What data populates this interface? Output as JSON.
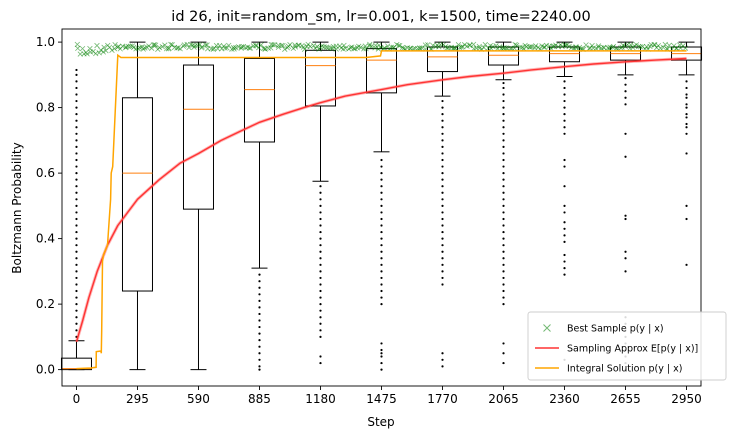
{
  "chart_data": {
    "type": "box",
    "title": "id 26, init=random_sm, lr=0.001, k=1500, time=2240.00",
    "xlabel": "Step",
    "ylabel": "Boltzmann Probability",
    "xlim": [
      -70,
      3020
    ],
    "ylim": [
      -0.05,
      1.04
    ],
    "x_ticks": [
      0,
      295,
      590,
      885,
      1180,
      1475,
      1770,
      2065,
      2360,
      2655,
      2950
    ],
    "y_ticks": [
      0.0,
      0.2,
      0.4,
      0.6,
      0.8,
      1.0
    ],
    "grid": false,
    "legend_position": "lower-right",
    "boxes": [
      {
        "step": 0,
        "q1": 0.0,
        "median": 0.003,
        "q3": 0.035,
        "whisker_low": 0.0,
        "whisker_high": 0.088,
        "outliers": [
          0.1,
          0.12,
          0.14,
          0.16,
          0.18,
          0.2,
          0.22,
          0.24,
          0.26,
          0.28,
          0.3,
          0.32,
          0.34,
          0.36,
          0.38,
          0.4,
          0.42,
          0.44,
          0.46,
          0.48,
          0.5,
          0.52,
          0.54,
          0.56,
          0.58,
          0.6,
          0.62,
          0.64,
          0.66,
          0.68,
          0.7,
          0.72,
          0.74,
          0.76,
          0.78,
          0.8,
          0.82,
          0.84,
          0.86,
          0.88,
          0.9,
          0.915
        ]
      },
      {
        "step": 295,
        "q1": 0.24,
        "median": 0.6,
        "q3": 0.83,
        "whisker_low": 0.0,
        "whisker_high": 1.0,
        "outliers": []
      },
      {
        "step": 590,
        "q1": 0.49,
        "median": 0.795,
        "q3": 0.93,
        "whisker_low": 0.0,
        "whisker_high": 1.0,
        "outliers": []
      },
      {
        "step": 885,
        "q1": 0.695,
        "median": 0.855,
        "q3": 0.95,
        "whisker_low": 0.31,
        "whisker_high": 1.0,
        "outliers": [
          0.0,
          0.01,
          0.03,
          0.05,
          0.07,
          0.09,
          0.11,
          0.13,
          0.15,
          0.17,
          0.19,
          0.21,
          0.23,
          0.25,
          0.27,
          0.29
        ]
      },
      {
        "step": 1180,
        "q1": 0.805,
        "median": 0.928,
        "q3": 0.975,
        "whisker_low": 0.575,
        "whisker_high": 1.0,
        "outliers": [
          0.02,
          0.04,
          0.1,
          0.12,
          0.14,
          0.16,
          0.18,
          0.2,
          0.22,
          0.24,
          0.26,
          0.28,
          0.3,
          0.32,
          0.34,
          0.36,
          0.38,
          0.4,
          0.42,
          0.44,
          0.46,
          0.48,
          0.5,
          0.52,
          0.54,
          0.56
        ]
      },
      {
        "step": 1475,
        "q1": 0.845,
        "median": 0.945,
        "q3": 0.98,
        "whisker_low": 0.665,
        "whisker_high": 1.0,
        "outliers": [
          0.0,
          0.02,
          0.04,
          0.05,
          0.06,
          0.08,
          0.2,
          0.22,
          0.24,
          0.26,
          0.28,
          0.3,
          0.32,
          0.34,
          0.36,
          0.38,
          0.4,
          0.42,
          0.44,
          0.46,
          0.48,
          0.5,
          0.52,
          0.54,
          0.56,
          0.58,
          0.6,
          0.62,
          0.64
        ]
      },
      {
        "step": 1770,
        "q1": 0.91,
        "median": 0.955,
        "q3": 0.985,
        "whisker_low": 0.835,
        "whisker_high": 1.0,
        "outliers": [
          0.01,
          0.03,
          0.05,
          0.26,
          0.28,
          0.3,
          0.32,
          0.34,
          0.36,
          0.38,
          0.4,
          0.42,
          0.44,
          0.46,
          0.48,
          0.5,
          0.52,
          0.54,
          0.56,
          0.58,
          0.6,
          0.62,
          0.64,
          0.66,
          0.68,
          0.7,
          0.72,
          0.74,
          0.76,
          0.78,
          0.8,
          0.82
        ]
      },
      {
        "step": 2065,
        "q1": 0.93,
        "median": 0.96,
        "q3": 0.985,
        "whisker_low": 0.885,
        "whisker_high": 1.0,
        "outliers": [
          0.02,
          0.05,
          0.08,
          0.2,
          0.22,
          0.24,
          0.26,
          0.28,
          0.3,
          0.32,
          0.34,
          0.36,
          0.38,
          0.4,
          0.42,
          0.44,
          0.46,
          0.48,
          0.5,
          0.52,
          0.54,
          0.56,
          0.58,
          0.6,
          0.62,
          0.64,
          0.66,
          0.68,
          0.7,
          0.72,
          0.74,
          0.76,
          0.78,
          0.8,
          0.82,
          0.84,
          0.86,
          0.875
        ]
      },
      {
        "step": 2360,
        "q1": 0.94,
        "median": 0.965,
        "q3": 0.985,
        "whisker_low": 0.895,
        "whisker_high": 1.0,
        "outliers": [
          0.03,
          0.29,
          0.31,
          0.33,
          0.35,
          0.39,
          0.41,
          0.43,
          0.45,
          0.48,
          0.5,
          0.56,
          0.62,
          0.64,
          0.72,
          0.74,
          0.76,
          0.78,
          0.8,
          0.82,
          0.84,
          0.86,
          0.88
        ]
      },
      {
        "step": 2655,
        "q1": 0.945,
        "median": 0.965,
        "q3": 0.985,
        "whisker_low": 0.9,
        "whisker_high": 1.0,
        "outliers": [
          0.0,
          0.02,
          0.04,
          0.06,
          0.08,
          0.1,
          0.12,
          0.14,
          0.16,
          0.3,
          0.34,
          0.36,
          0.46,
          0.47,
          0.65,
          0.72,
          0.81,
          0.83,
          0.85,
          0.87,
          0.89
        ]
      },
      {
        "step": 2950,
        "q1": 0.945,
        "median": 0.965,
        "q3": 0.985,
        "whisker_low": 0.9,
        "whisker_high": 1.0,
        "outliers": [
          0.32,
          0.46,
          0.5,
          0.66,
          0.72,
          0.74,
          0.75,
          0.77,
          0.78,
          0.8,
          0.81,
          0.83,
          0.84,
          0.86,
          0.88
        ]
      }
    ],
    "series": [
      {
        "name": "Best Sample $p(y \\mid x)$",
        "kind": "scatter",
        "color": "#008000",
        "marker": "x",
        "x_range": [
          0,
          2950
        ],
        "value_range": [
          0.95,
          0.993
        ]
      },
      {
        "name": "Sampling Approx $E[p(y \\mid x)]$",
        "kind": "line",
        "color": "#ff3333",
        "points": [
          [
            0,
            0.085
          ],
          [
            30,
            0.15
          ],
          [
            60,
            0.22
          ],
          [
            100,
            0.3
          ],
          [
            150,
            0.38
          ],
          [
            200,
            0.44
          ],
          [
            295,
            0.52
          ],
          [
            400,
            0.58
          ],
          [
            500,
            0.63
          ],
          [
            590,
            0.66
          ],
          [
            700,
            0.7
          ],
          [
            800,
            0.73
          ],
          [
            885,
            0.755
          ],
          [
            1000,
            0.78
          ],
          [
            1100,
            0.8
          ],
          [
            1180,
            0.815
          ],
          [
            1300,
            0.835
          ],
          [
            1475,
            0.855
          ],
          [
            1600,
            0.87
          ],
          [
            1770,
            0.885
          ],
          [
            1900,
            0.895
          ],
          [
            2065,
            0.905
          ],
          [
            2200,
            0.915
          ],
          [
            2360,
            0.925
          ],
          [
            2500,
            0.933
          ],
          [
            2655,
            0.94
          ],
          [
            2800,
            0.945
          ],
          [
            2950,
            0.95
          ]
        ]
      },
      {
        "name": "Integral Solution $p(y \\mid x)$",
        "kind": "line",
        "color": "#ffa500",
        "points": [
          [
            0,
            0.003
          ],
          [
            70,
            0.005
          ],
          [
            95,
            0.007
          ],
          [
            96,
            0.055
          ],
          [
            118,
            0.057
          ],
          [
            120,
            0.05
          ],
          [
            122,
            0.12
          ],
          [
            126,
            0.33
          ],
          [
            130,
            0.35
          ],
          [
            150,
            0.38
          ],
          [
            165,
            0.52
          ],
          [
            168,
            0.6
          ],
          [
            175,
            0.62
          ],
          [
            200,
            0.96
          ],
          [
            215,
            0.953
          ],
          [
            250,
            0.953
          ],
          [
            1400,
            0.953
          ],
          [
            1470,
            0.958
          ],
          [
            1475,
            0.973
          ],
          [
            2950,
            0.973
          ]
        ]
      }
    ]
  }
}
